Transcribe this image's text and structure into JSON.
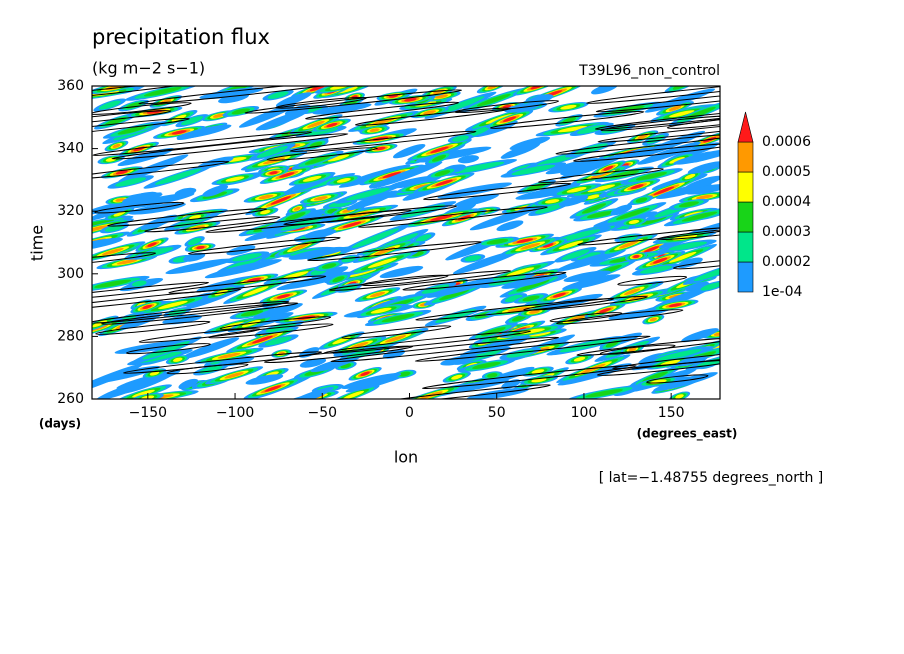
{
  "chart_data": {
    "type": "hovmoller",
    "title": "precipitation flux",
    "subtitle": "(kg m−2 s−1)",
    "run_label": "T39L96_non_control",
    "ylabel": "time",
    "yunits": "(days)",
    "xlabel": "lon",
    "xunits": "(degrees_east)",
    "footnote": "[ lat=−1.48755 degrees_north ]",
    "xlim": [
      -182,
      178
    ],
    "xticks": [
      {
        "value": -150,
        "label": "−150"
      },
      {
        "value": -100,
        "label": "−100"
      },
      {
        "value": -50,
        "label": "−50"
      },
      0,
      50,
      100,
      150
    ],
    "ylim": [
      260,
      360
    ],
    "yticks": [
      260,
      280,
      300,
      320,
      340,
      360
    ],
    "levels": [
      {
        "value": 0.0001,
        "label": "1e-04"
      },
      0.0002,
      0.0003,
      0.0004,
      0.0005,
      0.0006
    ],
    "colors": [
      "#1e9bff",
      "#00e68a",
      "#18d418",
      "#ffff00",
      "#ff9900",
      "#ff1a1a"
    ]
  }
}
